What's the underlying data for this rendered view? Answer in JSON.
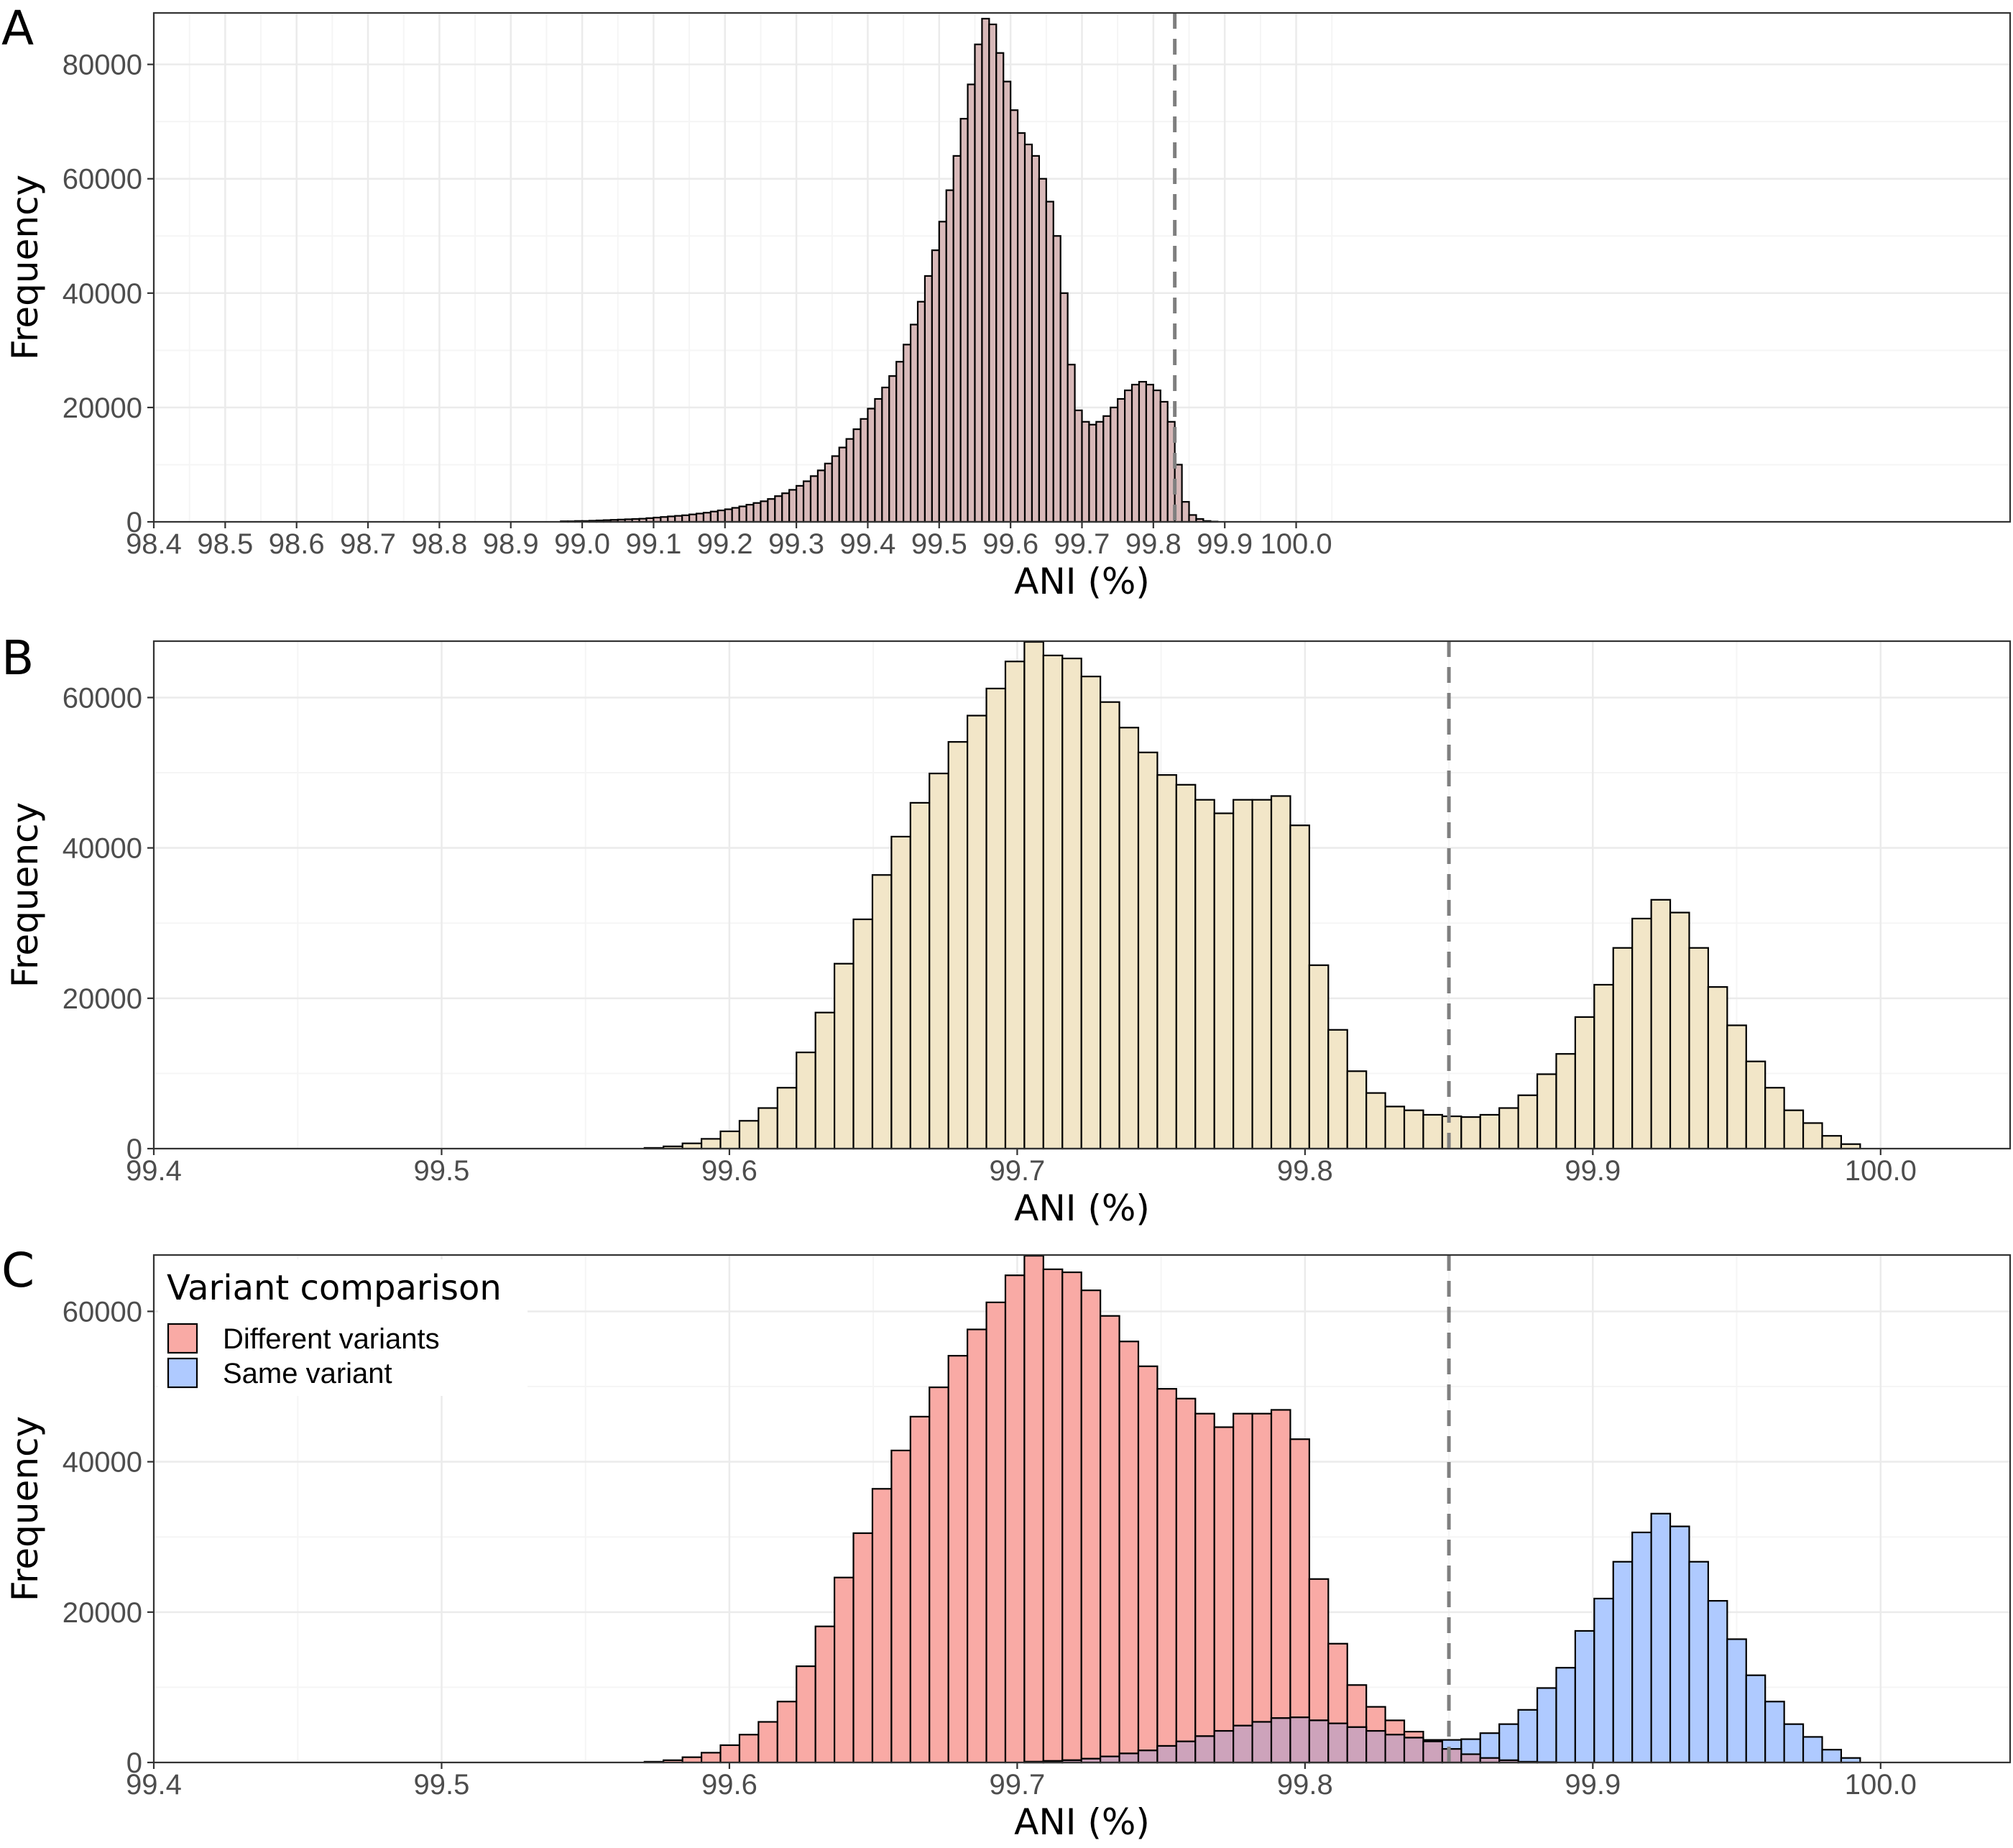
{
  "colors": {
    "panel_a_fill": "#d8b9b9",
    "panel_b_fill": "#f2e6c8",
    "different_variants": "#f8766d",
    "same_variant": "#619cff",
    "reference_line": "#7f7f7f",
    "grid_major": "#ebebeb",
    "grid_minor": "#f5f5f5"
  },
  "chart_data": [
    {
      "panel": "A",
      "type": "bar",
      "xlabel": "ANI (%)",
      "ylabel": "Frequency",
      "xlim": [
        98.4,
        101.0
      ],
      "ylim": [
        0,
        89000
      ],
      "xticks": [
        "98.4",
        "98.5",
        "98.6",
        "98.7",
        "98.8",
        "98.9",
        "99.0",
        "99.1",
        "99.2",
        "99.3",
        "99.4",
        "99.5",
        "99.6",
        "99.7",
        "99.8",
        "99.9",
        "100.0"
      ],
      "yticks": [
        0,
        20000,
        40000,
        60000,
        80000
      ],
      "vline": 99.83,
      "grid": true,
      "bin_start": 98.97,
      "bin_width": 0.01,
      "values": [
        100,
        100,
        150,
        150,
        200,
        250,
        300,
        350,
        400,
        450,
        500,
        550,
        650,
        750,
        850,
        950,
        1050,
        1150,
        1300,
        1450,
        1600,
        1800,
        2000,
        2200,
        2450,
        2700,
        3000,
        3300,
        3600,
        4000,
        4500,
        5000,
        5600,
        6300,
        7100,
        8000,
        9000,
        10200,
        11500,
        13000,
        14500,
        16200,
        18000,
        19800,
        21500,
        23500,
        25500,
        28000,
        31000,
        34500,
        38500,
        43000,
        47500,
        52500,
        58000,
        64000,
        70500,
        76500,
        83500,
        88000,
        87000,
        82000,
        77000,
        72000,
        68000,
        66000,
        64000,
        60000,
        56000,
        50000,
        40000,
        27500,
        19500,
        17500,
        17000,
        17500,
        18500,
        20000,
        21500,
        23000,
        24000,
        24500,
        24000,
        23000,
        21000,
        17500,
        10000,
        3500,
        1200,
        500,
        150,
        50
      ]
    },
    {
      "panel": "B",
      "type": "bar",
      "xlabel": "ANI (%)",
      "ylabel": "Frequency",
      "xlim": [
        99.4,
        100.045
      ],
      "ylim": [
        0,
        67500
      ],
      "xticks": [
        "99.4",
        "99.5",
        "99.6",
        "99.7",
        "99.8",
        "99.9",
        "100.0"
      ],
      "yticks": [
        0,
        20000,
        40000,
        60000
      ],
      "vline": 99.85,
      "grid": true,
      "bin_start": 99.5705,
      "bin_width": 0.0066,
      "values": [
        100,
        300,
        700,
        1300,
        2300,
        3700,
        5400,
        8100,
        12800,
        18100,
        24600,
        30500,
        36400,
        41500,
        46000,
        49900,
        54100,
        57600,
        61200,
        64800,
        67400,
        65600,
        65200,
        62800,
        59400,
        56000,
        52700,
        49700,
        48400,
        46400,
        44600,
        46400,
        46400,
        46900,
        43000,
        24400,
        15800,
        10300,
        7400,
        5600,
        5100,
        4500,
        4300,
        4200,
        4500,
        5400,
        7100,
        9900,
        12600,
        17500,
        21800,
        26700,
        30600,
        33100,
        31400,
        26700,
        21500,
        16400,
        11600,
        8100,
        5100,
        3400,
        1700,
        600
      ]
    },
    {
      "panel": "C",
      "type": "bar",
      "xlabel": "ANI (%)",
      "ylabel": "Frequency",
      "xlim": [
        99.4,
        100.045
      ],
      "ylim": [
        0,
        67500
      ],
      "xticks": [
        "99.4",
        "99.5",
        "99.6",
        "99.7",
        "99.8",
        "99.9",
        "100.0"
      ],
      "yticks": [
        0,
        20000,
        40000,
        60000
      ],
      "vline": 99.85,
      "grid": true,
      "legend_title": "Variant comparison",
      "legend_position": "top-left",
      "bin_start": 99.5705,
      "bin_width": 0.0066,
      "series": [
        {
          "name": "Different variants",
          "values": [
            100,
            300,
            700,
            1300,
            2300,
            3700,
            5400,
            8100,
            12800,
            18100,
            24600,
            30500,
            36400,
            41500,
            46000,
            49900,
            54100,
            57600,
            61200,
            64800,
            67400,
            65600,
            65200,
            62800,
            59400,
            56000,
            52700,
            49700,
            48400,
            46400,
            44600,
            46400,
            46400,
            46900,
            43000,
            24400,
            15800,
            10300,
            7400,
            5600,
            4100,
            2800,
            1800,
            1100,
            600,
            300,
            100,
            50,
            0,
            0,
            0,
            0,
            0,
            0,
            0,
            0,
            0,
            0,
            0,
            0,
            0,
            0,
            0,
            0
          ]
        },
        {
          "name": "Same variant",
          "values": [
            0,
            0,
            0,
            0,
            0,
            0,
            0,
            0,
            0,
            0,
            0,
            0,
            0,
            0,
            0,
            0,
            0,
            0,
            0,
            0,
            100,
            200,
            300,
            500,
            800,
            1200,
            1600,
            2200,
            2800,
            3500,
            4200,
            4900,
            5400,
            5900,
            6000,
            5600,
            5200,
            4700,
            4200,
            3700,
            3300,
            3000,
            3000,
            3100,
            3900,
            5100,
            7000,
            9900,
            12600,
            17500,
            21800,
            26700,
            30600,
            33100,
            31400,
            26700,
            21500,
            16400,
            11600,
            8100,
            5100,
            3400,
            1700,
            600
          ]
        }
      ]
    }
  ]
}
